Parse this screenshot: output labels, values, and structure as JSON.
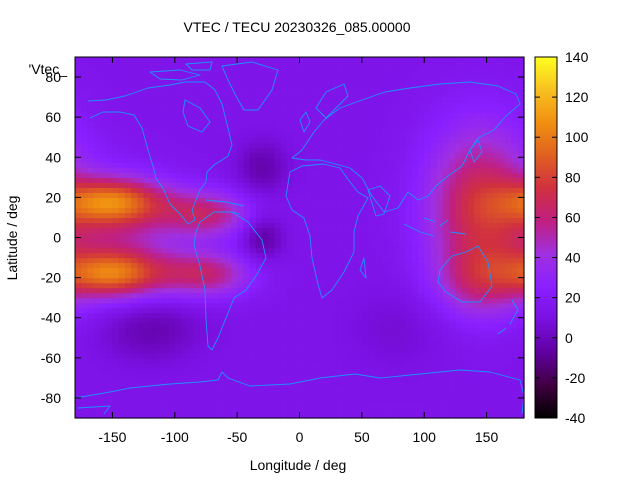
{
  "chart_data": {
    "type": "heatmap",
    "title": "VTEC / TECU 20230326_085.00000",
    "xlabel": "Longitude / deg",
    "ylabel": "Latitude / deg",
    "key_label": "'Vtec_",
    "xlim": [
      -180,
      180
    ],
    "ylim": [
      -90,
      90
    ],
    "x_ticks": [
      -150,
      -100,
      -50,
      0,
      50,
      100,
      150
    ],
    "y_ticks": [
      -80,
      -60,
      -40,
      -20,
      0,
      20,
      40,
      60,
      80
    ],
    "colorbar": {
      "min": -40,
      "max": 140,
      "ticks": [
        -40,
        -20,
        0,
        20,
        40,
        60,
        80,
        100,
        120,
        140
      ]
    },
    "grid": "0.05",
    "palette": [
      "#000000",
      "#400040",
      "#6000a0",
      "#7a10e0",
      "#8a20ff",
      "#a030e0",
      "#c02080",
      "#d03040",
      "#e06020",
      "#f09010",
      "#f8c020",
      "#ffff20"
    ],
    "coastline_color": "#1e90ff",
    "field_features": [
      {
        "lon": 145,
        "lat": 15,
        "sx": 30,
        "sy": 28,
        "amp": 58
      },
      {
        "lon": 145,
        "lat": -22,
        "sx": 25,
        "sy": 12,
        "amp": 28
      },
      {
        "lon": -150,
        "lat": 18,
        "sx": 30,
        "sy": 8,
        "amp": 70
      },
      {
        "lon": -150,
        "lat": -18,
        "sx": 30,
        "sy": 8,
        "amp": 68
      },
      {
        "lon": -145,
        "lat": 0,
        "sx": 35,
        "sy": 20,
        "amp": 28
      },
      {
        "lon": -75,
        "lat": 12,
        "sx": 25,
        "sy": 8,
        "amp": 45
      },
      {
        "lon": -75,
        "lat": -18,
        "sx": 25,
        "sy": 8,
        "amp": 45
      },
      {
        "lon": -30,
        "lat": 0,
        "sx": 12,
        "sy": 8,
        "amp": -22
      },
      {
        "lon": -30,
        "lat": 35,
        "sx": 15,
        "sy": 10,
        "amp": -18
      },
      {
        "lon": -120,
        "lat": -45,
        "sx": 30,
        "sy": 12,
        "amp": -18
      },
      {
        "lon": 80,
        "lat": -45,
        "sx": 30,
        "sy": 15,
        "amp": -8
      }
    ]
  }
}
